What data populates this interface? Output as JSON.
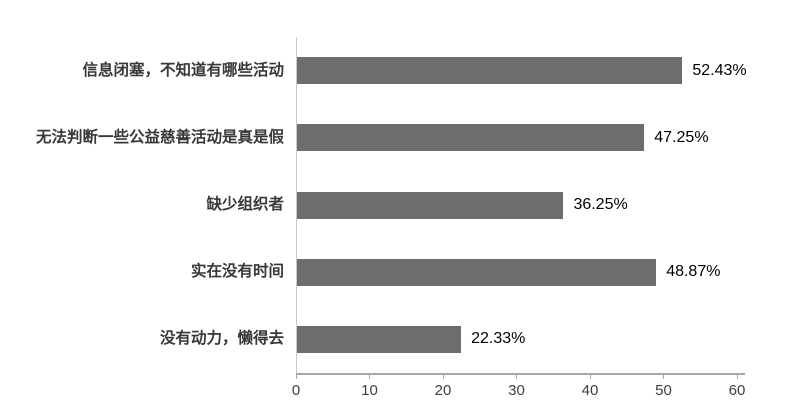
{
  "chart_data": {
    "type": "bar",
    "orientation": "horizontal",
    "title": "",
    "categories": [
      "信息闭塞，不知道有哪些活动",
      "无法判断一些公益慈善活动是真是假",
      "缺少组织者",
      "实在没有时间",
      "没有动力，懒得去"
    ],
    "values": [
      52.43,
      47.25,
      36.25,
      48.87,
      22.33
    ],
    "value_labels": [
      "52.43%",
      "47.25%",
      "36.25%",
      "48.87%",
      "22.33%"
    ],
    "xticks": [
      0,
      10,
      20,
      30,
      40,
      50,
      60
    ],
    "xlim": [
      0,
      60
    ],
    "xlabel": "",
    "ylabel": "",
    "grid": false,
    "legend": false,
    "colors": {
      "bar": "#6d6d6d",
      "axis_vertical": "#c9c9c9",
      "axis_horizontal": "#a6a6a6",
      "category_text": "#383838",
      "value_text": "#000000",
      "tick_text": "#404040",
      "background": "#ffffff"
    }
  }
}
